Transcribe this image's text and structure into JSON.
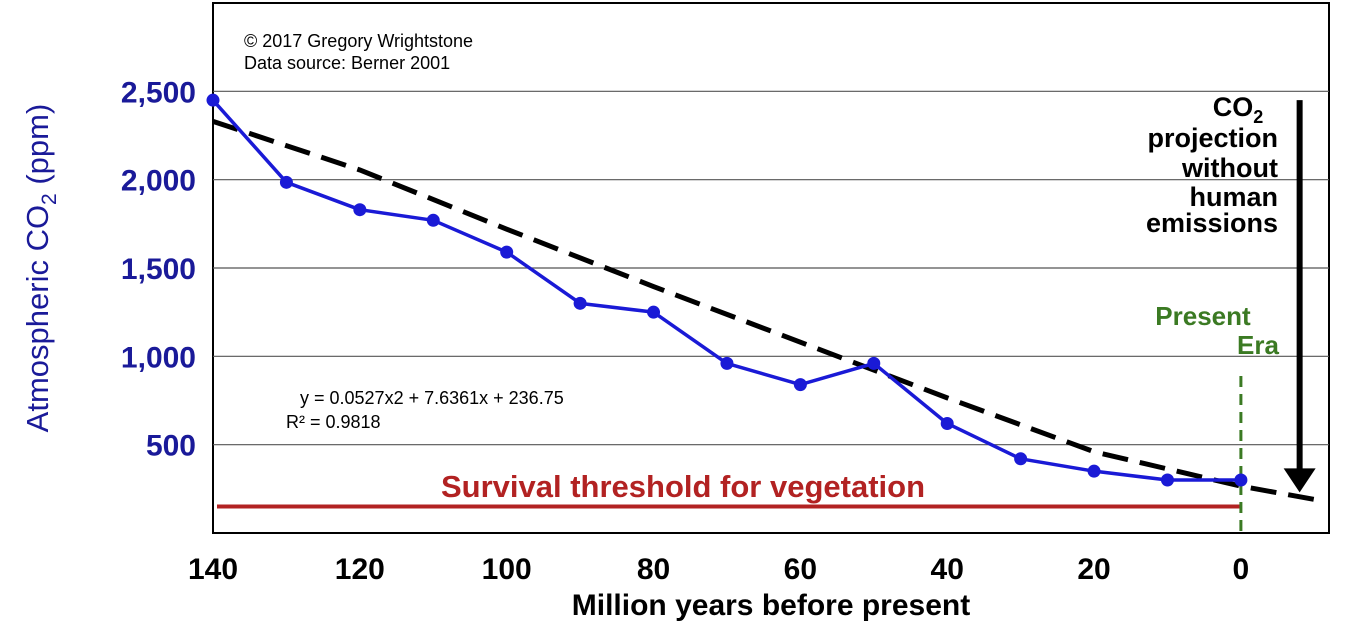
{
  "chart_data": {
    "type": "line",
    "xlabel": "Million years before present",
    "ylabel_main": "Atmospheric CO",
    "ylabel_sub": "2",
    "ylabel_unit": " (ppm)",
    "x_ticks": [
      "140",
      "120",
      "100",
      "80",
      "60",
      "40",
      "20",
      "0"
    ],
    "x_tick_values": [
      140,
      120,
      100,
      80,
      60,
      40,
      20,
      0
    ],
    "y_ticks": [
      "2,500",
      "2,000",
      "1,500",
      "1,000",
      "500"
    ],
    "y_tick_values": [
      2500,
      2000,
      1500,
      1000,
      500
    ],
    "xlim": [
      140,
      -12
    ],
    "ylim": [
      0,
      3000
    ],
    "grid": true,
    "colors": {
      "series": "#1a1ad6",
      "axis_text": "#1a1a99",
      "trend": "#000000",
      "threshold": "#b22222",
      "present": "#3b7a23"
    },
    "series": [
      {
        "x": [
          140,
          130,
          120,
          110,
          100,
          90,
          80,
          70,
          60,
          50,
          40,
          30,
          20,
          10,
          0
        ],
        "values": [
          2450,
          1985,
          1830,
          1770,
          1590,
          1300,
          1250,
          960,
          840,
          960,
          620,
          420,
          350,
          300,
          300
        ]
      }
    ],
    "trendline": {
      "style": "dashed",
      "x": [
        140,
        120,
        100,
        80,
        60,
        40,
        20,
        0,
        -10
      ],
      "values": [
        2330,
        2055,
        1720,
        1395,
        1080,
        765,
        460,
        265,
        190
      ]
    },
    "threshold": {
      "value": 150,
      "label": "Survival threshold for vegetation"
    },
    "present_era": {
      "x": 0,
      "label_line1": "Present",
      "label_line2": "Era"
    },
    "projection": {
      "label_co": "CO",
      "label_sub": "2",
      "label_lines": [
        "projection",
        "without",
        "human",
        "emissions"
      ],
      "x": -8,
      "from": 2450,
      "to": 230
    },
    "credit_line1": "© 2017 Gregory Wrightstone",
    "credit_line2": "Data source: Berner 2001",
    "equation": "y = 0.0527x2 + 7.6361x + 236.75",
    "r_squared": "R² = 0.9818"
  }
}
